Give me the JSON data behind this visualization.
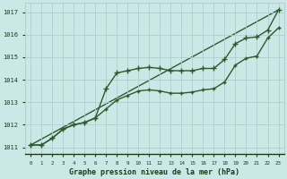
{
  "background_color": "#cce8e6",
  "grid_color": "#aad0cc",
  "line_color": "#2d5a2d",
  "label_color": "#1a3a1a",
  "title": "Graphe pression niveau de la mer (hPa)",
  "ylim": [
    1010.7,
    1017.4
  ],
  "xlim": [
    -0.5,
    23.5
  ],
  "yticks": [
    1011,
    1012,
    1013,
    1014,
    1015,
    1016,
    1017
  ],
  "xticks": [
    0,
    1,
    2,
    3,
    4,
    5,
    6,
    7,
    8,
    9,
    10,
    11,
    12,
    13,
    14,
    15,
    16,
    17,
    18,
    19,
    20,
    21,
    22,
    23
  ],
  "series": [
    {
      "x": [
        0,
        1,
        2,
        3,
        4,
        5,
        6,
        7,
        8,
        9,
        10,
        11,
        12,
        13,
        14,
        15,
        16,
        17,
        18,
        19,
        20,
        21,
        22,
        23
      ],
      "y": [
        1011.1,
        1011.1,
        1011.4,
        1011.8,
        1012.0,
        1012.1,
        1012.3,
        1013.6,
        1014.3,
        1014.4,
        1014.5,
        1014.55,
        1014.5,
        1014.4,
        1014.4,
        1014.4,
        1014.5,
        1014.5,
        1014.9,
        1015.6,
        1015.85,
        1015.9,
        1016.2,
        1017.1
      ],
      "marker": "+",
      "markersize": 4.0,
      "linewidth": 1.0,
      "zorder": 3
    },
    {
      "x": [
        0,
        1,
        2,
        3,
        4,
        5,
        6,
        7,
        8,
        9,
        10,
        11,
        12,
        13,
        14,
        15,
        16,
        17,
        18,
        19,
        20,
        21,
        22,
        23
      ],
      "y": [
        1011.1,
        1011.1,
        1011.4,
        1011.8,
        1012.0,
        1012.1,
        1012.3,
        1012.7,
        1013.1,
        1013.3,
        1013.5,
        1013.55,
        1013.5,
        1013.4,
        1013.4,
        1013.45,
        1013.55,
        1013.6,
        1013.9,
        1014.65,
        1014.95,
        1015.05,
        1015.85,
        1016.3
      ],
      "marker": "+",
      "markersize": 3.5,
      "linewidth": 1.0,
      "zorder": 2
    },
    {
      "x": [
        0,
        23
      ],
      "y": [
        1011.1,
        1017.1
      ],
      "marker": null,
      "markersize": 0,
      "linewidth": 1.0,
      "zorder": 1
    }
  ]
}
